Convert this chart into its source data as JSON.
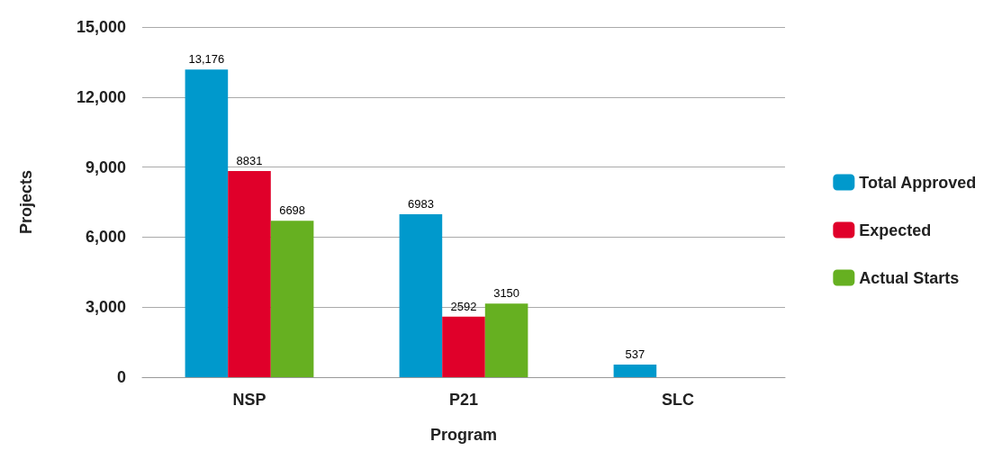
{
  "chart_data": {
    "type": "bar",
    "xlabel": "Program",
    "ylabel": "Projects",
    "categories": [
      "NSP",
      "P21",
      "SLC"
    ],
    "series": [
      {
        "name": "Total Approved",
        "color": "#0099cc",
        "values": [
          13176,
          6983,
          537
        ],
        "value_labels": [
          "13,176",
          "6983",
          "537"
        ]
      },
      {
        "name": "Expected",
        "color": "#e0002a",
        "values": [
          8831,
          2592,
          null
        ],
        "value_labels": [
          "8831",
          "2592",
          null
        ]
      },
      {
        "name": "Actual Starts",
        "color": "#66b021",
        "values": [
          6698,
          3150,
          null
        ],
        "value_labels": [
          "6698",
          "3150",
          null
        ]
      }
    ],
    "ylim": [
      0,
      15000
    ],
    "yticks": [
      0,
      {
        "value": 3000,
        "label": "3,000"
      },
      {
        "value": 6000,
        "label": "6,000"
      },
      {
        "value": 9000,
        "label": "9,000"
      },
      {
        "value": 12000,
        "label": "12,000"
      },
      {
        "value": 15000,
        "label": "15,000"
      }
    ],
    "grid": "y",
    "legend": "right"
  }
}
